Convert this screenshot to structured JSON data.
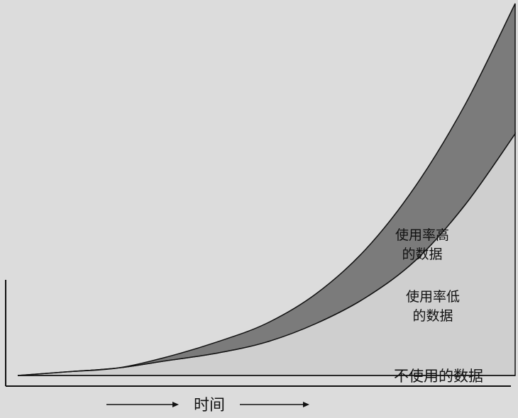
{
  "chart_data": {
    "type": "area",
    "xlabel": "时间",
    "ylabel": "",
    "x": [
      0,
      1,
      2,
      3,
      4,
      5,
      6,
      7,
      8,
      9,
      10
    ],
    "xlim": [
      0,
      10
    ],
    "ylim": [
      0,
      100
    ],
    "series": [
      {
        "name": "不使用的数据",
        "values": [
          0,
          0,
          0,
          0,
          0,
          0,
          0,
          0,
          0,
          0,
          0
        ],
        "color": "#bdbdbd"
      },
      {
        "name": "使用率低的数据",
        "values": [
          0,
          1,
          2,
          4,
          6,
          9,
          14,
          21,
          31,
          46,
          65
        ],
        "color": "#cfcfcf"
      },
      {
        "name": "使用率高的数据",
        "values": [
          0,
          1,
          2,
          5,
          9,
          14,
          22,
          34,
          51,
          73,
          100
        ],
        "color": "#7b7b7b"
      }
    ],
    "labels": {
      "high_line1": "使用率高",
      "high_line2": "的数据",
      "low_line1": "使用率低",
      "low_line2": "的数据",
      "unused": "不使用的数据"
    },
    "grid": false,
    "legend": "none"
  }
}
